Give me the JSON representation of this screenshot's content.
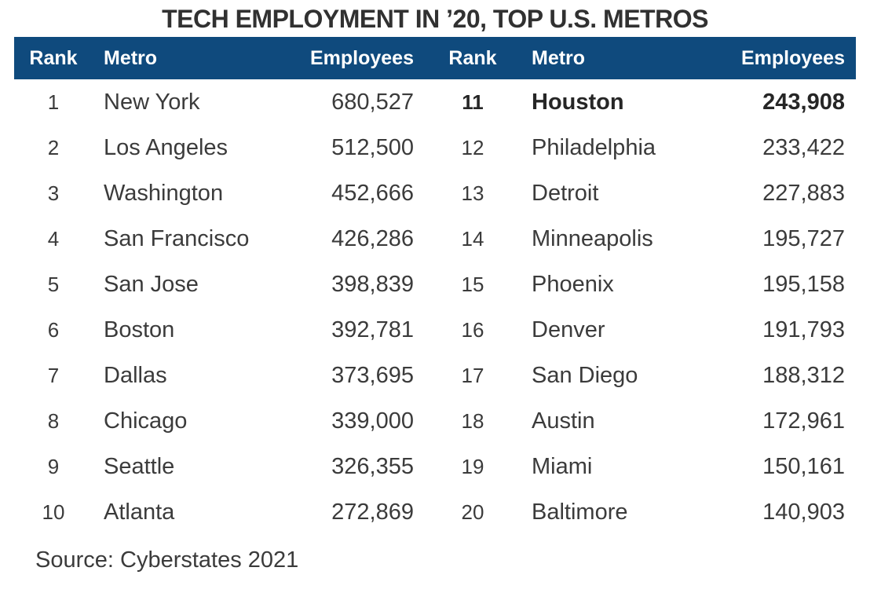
{
  "title": "TECH EMPLOYMENT IN ’20, TOP U.S. METROS",
  "source": "Source: Cyberstates 2021",
  "colors": {
    "header_bg": "#0f4a7d",
    "header_text": "#ffffff",
    "title_text": "#313131",
    "body_text": "#3b3b3b",
    "highlight_row_text": "#262626"
  },
  "table": {
    "headers": {
      "rank": "Rank",
      "metro": "Metro",
      "employees": "Employees"
    },
    "left_rows": [
      {
        "rank": "1",
        "metro": "New York",
        "employees": "680,527"
      },
      {
        "rank": "2",
        "metro": "Los Angeles",
        "employees": "512,500"
      },
      {
        "rank": "3",
        "metro": "Washington",
        "employees": "452,666"
      },
      {
        "rank": "4",
        "metro": "San Francisco",
        "employees": "426,286"
      },
      {
        "rank": "5",
        "metro": "San Jose",
        "employees": "398,839"
      },
      {
        "rank": "6",
        "metro": "Boston",
        "employees": "392,781"
      },
      {
        "rank": "7",
        "metro": "Dallas",
        "employees": "373,695"
      },
      {
        "rank": "8",
        "metro": "Chicago",
        "employees": "339,000"
      },
      {
        "rank": "9",
        "metro": "Seattle",
        "employees": "326,355"
      },
      {
        "rank": "10",
        "metro": "Atlanta",
        "employees": "272,869"
      }
    ],
    "right_rows": [
      {
        "rank": "11",
        "metro": "Houston",
        "employees": "243,908",
        "bold": true
      },
      {
        "rank": "12",
        "metro": "Philadelphia",
        "employees": "233,422"
      },
      {
        "rank": "13",
        "metro": "Detroit",
        "employees": "227,883"
      },
      {
        "rank": "14",
        "metro": "Minneapolis",
        "employees": "195,727"
      },
      {
        "rank": "15",
        "metro": "Phoenix",
        "employees": "195,158"
      },
      {
        "rank": "16",
        "metro": "Denver",
        "employees": "191,793"
      },
      {
        "rank": "17",
        "metro": "San Diego",
        "employees": "188,312"
      },
      {
        "rank": "18",
        "metro": "Austin",
        "employees": "172,961"
      },
      {
        "rank": "19",
        "metro": "Miami",
        "employees": "150,161"
      },
      {
        "rank": "20",
        "metro": "Baltimore",
        "employees": "140,903"
      }
    ]
  },
  "chart_data": {
    "type": "table",
    "title": "TECH EMPLOYMENT IN ’20, TOP U.S. METROS",
    "columns": [
      "Rank",
      "Metro",
      "Employees"
    ],
    "rows": [
      [
        1,
        "New York",
        680527
      ],
      [
        2,
        "Los Angeles",
        512500
      ],
      [
        3,
        "Washington",
        452666
      ],
      [
        4,
        "San Francisco",
        426286
      ],
      [
        5,
        "San Jose",
        398839
      ],
      [
        6,
        "Boston",
        392781
      ],
      [
        7,
        "Dallas",
        373695
      ],
      [
        8,
        "Chicago",
        339000
      ],
      [
        9,
        "Seattle",
        326355
      ],
      [
        10,
        "Atlanta",
        272869
      ],
      [
        11,
        "Houston",
        243908
      ],
      [
        12,
        "Philadelphia",
        233422
      ],
      [
        13,
        "Detroit",
        227883
      ],
      [
        14,
        "Minneapolis",
        195727
      ],
      [
        15,
        "Phoenix",
        195158
      ],
      [
        16,
        "Denver",
        191793
      ],
      [
        17,
        "San Diego",
        188312
      ],
      [
        18,
        "Austin",
        172961
      ],
      [
        19,
        "Miami",
        150161
      ],
      [
        20,
        "Baltimore",
        140903
      ]
    ],
    "highlighted_row": "Houston",
    "source": "Source: Cyberstates 2021"
  }
}
